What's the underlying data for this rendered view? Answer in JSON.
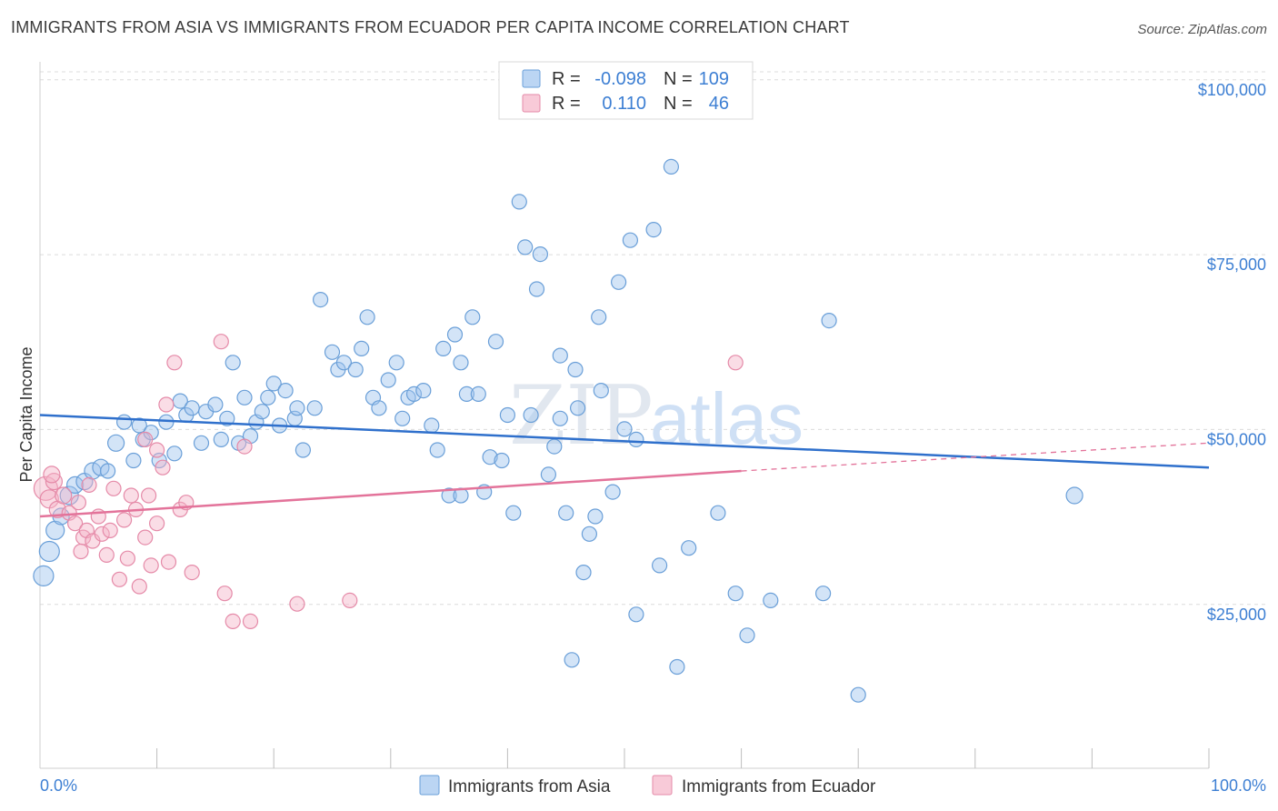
{
  "title": "IMMIGRANTS FROM ASIA VS IMMIGRANTS FROM ECUADOR PER CAPITA INCOME CORRELATION CHART",
  "source": "Source: ZipAtlas.com",
  "watermark": {
    "zip": "ZIP",
    "atlas": "atlas"
  },
  "legend": {
    "rows": [
      {
        "r_label": "R =",
        "r_value": "-0.098",
        "n_label": "N =",
        "n_value": "109",
        "color": "#9ec3ee"
      },
      {
        "r_label": "R =",
        "r_value": "0.110",
        "n_label": "N =",
        "n_value": "46",
        "color": "#f5b3c8"
      }
    ]
  },
  "chart_data": {
    "type": "scatter",
    "ylabel": "Per Capita Income",
    "xlim": [
      0,
      100
    ],
    "ylim": [
      3000,
      104000
    ],
    "x_tick_labels": [
      "0.0%",
      "100.0%"
    ],
    "y_ticks": [
      25000,
      50000,
      75000,
      100000
    ],
    "y_tick_labels": [
      "$25,000",
      "$50,000",
      "$75,000",
      "$100,000"
    ],
    "grid": true,
    "legend_position": "top-center",
    "series": [
      {
        "name": "Immigrants from Asia",
        "color": "#9ec3ee",
        "edge": "#6a9fd8",
        "trend_color": "#2f70cc",
        "trend": {
          "x0": 0,
          "y0": 53500,
          "x1": 100,
          "y1": 46000
        },
        "points": [
          [
            0.3,
            30500,
            11
          ],
          [
            0.8,
            34000,
            11
          ],
          [
            1.3,
            37000,
            10
          ],
          [
            1.8,
            39000,
            9
          ],
          [
            2.5,
            42000,
            10
          ],
          [
            3.0,
            43500,
            9
          ],
          [
            3.8,
            44000,
            9
          ],
          [
            4.5,
            45500,
            9
          ],
          [
            5.2,
            46000,
            9
          ],
          [
            5.8,
            45500,
            8
          ],
          [
            6.5,
            49500,
            9
          ],
          [
            7.2,
            52500,
            8
          ],
          [
            8.0,
            47000,
            8
          ],
          [
            8.5,
            52000,
            8
          ],
          [
            8.8,
            50000,
            8
          ],
          [
            9.5,
            51000,
            8
          ],
          [
            10.2,
            47000,
            8
          ],
          [
            10.8,
            52500,
            8
          ],
          [
            11.5,
            48000,
            8
          ],
          [
            12.0,
            55500,
            8
          ],
          [
            12.5,
            53500,
            8
          ],
          [
            13.0,
            54500,
            8
          ],
          [
            13.8,
            49500,
            8
          ],
          [
            14.2,
            54000,
            8
          ],
          [
            15.0,
            55000,
            8
          ],
          [
            15.5,
            50000,
            8
          ],
          [
            16.0,
            53000,
            8
          ],
          [
            16.5,
            61000,
            8
          ],
          [
            17.0,
            49500,
            8
          ],
          [
            17.5,
            56000,
            8
          ],
          [
            18.0,
            50500,
            8
          ],
          [
            18.5,
            52500,
            8
          ],
          [
            19.0,
            54000,
            8
          ],
          [
            19.5,
            56000,
            8
          ],
          [
            20.0,
            58000,
            8
          ],
          [
            20.5,
            52000,
            8
          ],
          [
            21.0,
            57000,
            8
          ],
          [
            21.8,
            53000,
            8
          ],
          [
            22.0,
            54500,
            8
          ],
          [
            22.5,
            48500,
            8
          ],
          [
            23.5,
            54500,
            8
          ],
          [
            24.0,
            70000,
            8
          ],
          [
            25.0,
            62500,
            8
          ],
          [
            25.5,
            60000,
            8
          ],
          [
            26.0,
            61000,
            8
          ],
          [
            27.0,
            60000,
            8
          ],
          [
            27.5,
            63000,
            8
          ],
          [
            28.0,
            67500,
            8
          ],
          [
            28.5,
            56000,
            8
          ],
          [
            29.0,
            54500,
            8
          ],
          [
            29.8,
            58500,
            8
          ],
          [
            30.5,
            61000,
            8
          ],
          [
            31.0,
            53000,
            8
          ],
          [
            31.5,
            56000,
            8
          ],
          [
            32.0,
            56500,
            8
          ],
          [
            32.8,
            57000,
            8
          ],
          [
            33.5,
            52000,
            8
          ],
          [
            34.0,
            48500,
            8
          ],
          [
            34.5,
            63000,
            8
          ],
          [
            35.0,
            42000,
            8
          ],
          [
            35.5,
            65000,
            8
          ],
          [
            36.0,
            61000,
            8
          ],
          [
            36.5,
            56500,
            8
          ],
          [
            37.0,
            67500,
            8
          ],
          [
            37.5,
            56500,
            8
          ],
          [
            38.0,
            42500,
            8
          ],
          [
            38.5,
            47500,
            8
          ],
          [
            39.0,
            64000,
            8
          ],
          [
            39.5,
            47000,
            8
          ],
          [
            40.0,
            53500,
            8
          ],
          [
            40.5,
            39500,
            8
          ],
          [
            41.0,
            84000,
            8
          ],
          [
            41.5,
            77500,
            8
          ],
          [
            42.0,
            53500,
            8
          ],
          [
            42.5,
            71500,
            8
          ],
          [
            42.8,
            76500,
            8
          ],
          [
            43.5,
            45000,
            8
          ],
          [
            44.0,
            49000,
            8
          ],
          [
            44.5,
            62000,
            8
          ],
          [
            45.0,
            39500,
            8
          ],
          [
            45.8,
            60000,
            8
          ],
          [
            46.0,
            54500,
            8
          ],
          [
            46.5,
            31000,
            8
          ],
          [
            47.0,
            36500,
            8
          ],
          [
            47.5,
            39000,
            8
          ],
          [
            47.8,
            67500,
            8
          ],
          [
            48.0,
            57000,
            8
          ],
          [
            49.0,
            42500,
            8
          ],
          [
            49.5,
            72500,
            8
          ],
          [
            50.0,
            51500,
            8
          ],
          [
            50.5,
            78500,
            8
          ],
          [
            51.0,
            25000,
            8
          ],
          [
            52.5,
            80000,
            8
          ],
          [
            53.0,
            32000,
            8
          ],
          [
            54.0,
            89000,
            8
          ],
          [
            54.5,
            17500,
            8
          ],
          [
            55.5,
            34500,
            8
          ],
          [
            58.0,
            39500,
            8
          ],
          [
            59.5,
            28000,
            8
          ],
          [
            60.5,
            22000,
            8
          ],
          [
            62.5,
            27000,
            8
          ],
          [
            67.0,
            28000,
            8
          ],
          [
            67.5,
            67000,
            8
          ],
          [
            70.0,
            13500,
            8
          ],
          [
            88.5,
            42000,
            9
          ],
          [
            45.5,
            18500,
            8
          ],
          [
            36.0,
            42000,
            8
          ],
          [
            44.5,
            53000,
            8
          ],
          [
            51.0,
            50000,
            8
          ]
        ]
      },
      {
        "name": "Immigrants from Ecuador",
        "color": "#f5b3c8",
        "edge": "#e58aa8",
        "trend_color": "#e3739a",
        "trend": {
          "x0": 0,
          "y0": 39000,
          "x1": 60,
          "y1": 45500
        },
        "trend_dashed": {
          "x0": 60,
          "y0": 45500,
          "x1": 100,
          "y1": 49500
        },
        "points": [
          [
            0.5,
            43000,
            13
          ],
          [
            0.8,
            41500,
            10
          ],
          [
            1.2,
            44000,
            9
          ],
          [
            1.5,
            40000,
            9
          ],
          [
            2.0,
            42000,
            9
          ],
          [
            2.5,
            39500,
            8
          ],
          [
            3.0,
            38000,
            8
          ],
          [
            3.3,
            41000,
            8
          ],
          [
            3.7,
            36000,
            8
          ],
          [
            4.0,
            37000,
            8
          ],
          [
            4.5,
            35500,
            8
          ],
          [
            5.0,
            39000,
            8
          ],
          [
            5.3,
            36500,
            8
          ],
          [
            5.7,
            33500,
            8
          ],
          [
            6.0,
            37000,
            8
          ],
          [
            6.3,
            43000,
            8
          ],
          [
            6.8,
            30000,
            8
          ],
          [
            7.2,
            38500,
            8
          ],
          [
            7.5,
            33000,
            8
          ],
          [
            7.8,
            42000,
            8
          ],
          [
            8.2,
            40000,
            8
          ],
          [
            8.5,
            29000,
            8
          ],
          [
            9.0,
            36000,
            8
          ],
          [
            9.3,
            42000,
            8
          ],
          [
            9.5,
            32000,
            8
          ],
          [
            10.0,
            38000,
            8
          ],
          [
            10.5,
            46000,
            8
          ],
          [
            11.0,
            32500,
            8
          ],
          [
            11.5,
            61000,
            8
          ],
          [
            12.0,
            40000,
            8
          ],
          [
            12.5,
            41000,
            8
          ],
          [
            13.0,
            31000,
            8
          ],
          [
            15.5,
            64000,
            8
          ],
          [
            15.8,
            28000,
            8
          ],
          [
            16.5,
            24000,
            8
          ],
          [
            17.5,
            49000,
            8
          ],
          [
            18.0,
            24000,
            8
          ],
          [
            22.0,
            26500,
            8
          ],
          [
            26.5,
            27000,
            8
          ],
          [
            59.5,
            61000,
            8
          ],
          [
            1.0,
            45000,
            9
          ],
          [
            3.5,
            34000,
            8
          ],
          [
            4.2,
            43500,
            8
          ],
          [
            10.0,
            48500,
            8
          ],
          [
            10.8,
            55000,
            8
          ],
          [
            9.0,
            50000,
            8
          ]
        ]
      }
    ]
  },
  "bottom_legend": {
    "items": [
      {
        "label": "Immigrants from Asia",
        "color": "#9ec3ee"
      },
      {
        "label": "Immigrants from Ecuador",
        "color": "#f5b3c8"
      }
    ]
  }
}
